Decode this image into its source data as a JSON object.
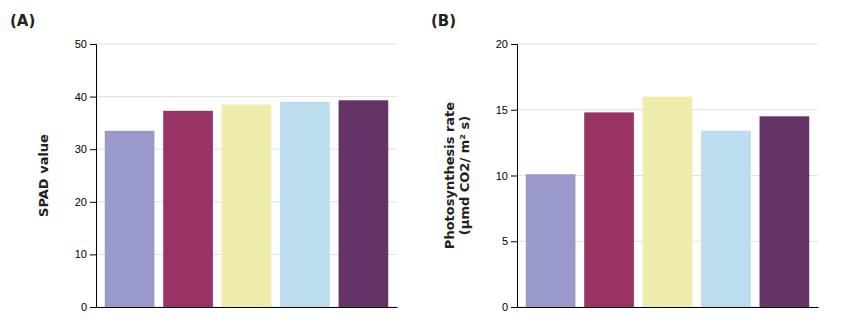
{
  "chart_data": [
    {
      "type": "bar",
      "title": "(A)",
      "ylabel": "SPAD value",
      "categories": [
        null,
        null,
        null,
        null,
        null
      ],
      "values": [
        33.5,
        37.3,
        38.5,
        39.0,
        39.3
      ],
      "colors": [
        "#9999cc",
        "#993366",
        "#eeeeaa",
        "#bbddee",
        "#663366"
      ],
      "ylim": [
        0,
        50
      ],
      "yticks": [
        0,
        10,
        20,
        30,
        40,
        50
      ],
      "grid": true,
      "tick_labels": "y"
    },
    {
      "type": "bar",
      "title": "(B)",
      "ylabel": "Photosynthesis rate\n(μmd CO2/ m² s)",
      "categories": [
        null,
        null,
        null,
        null,
        null
      ],
      "values": [
        10.1,
        14.8,
        16.0,
        13.4,
        14.5
      ],
      "colors": [
        "#9999cc",
        "#993366",
        "#eeeeaa",
        "#bbddee",
        "#663366"
      ],
      "ylim": [
        0,
        20
      ],
      "yticks": [
        0,
        5,
        10,
        15,
        20
      ],
      "grid": true,
      "tick_labels": "y"
    }
  ]
}
